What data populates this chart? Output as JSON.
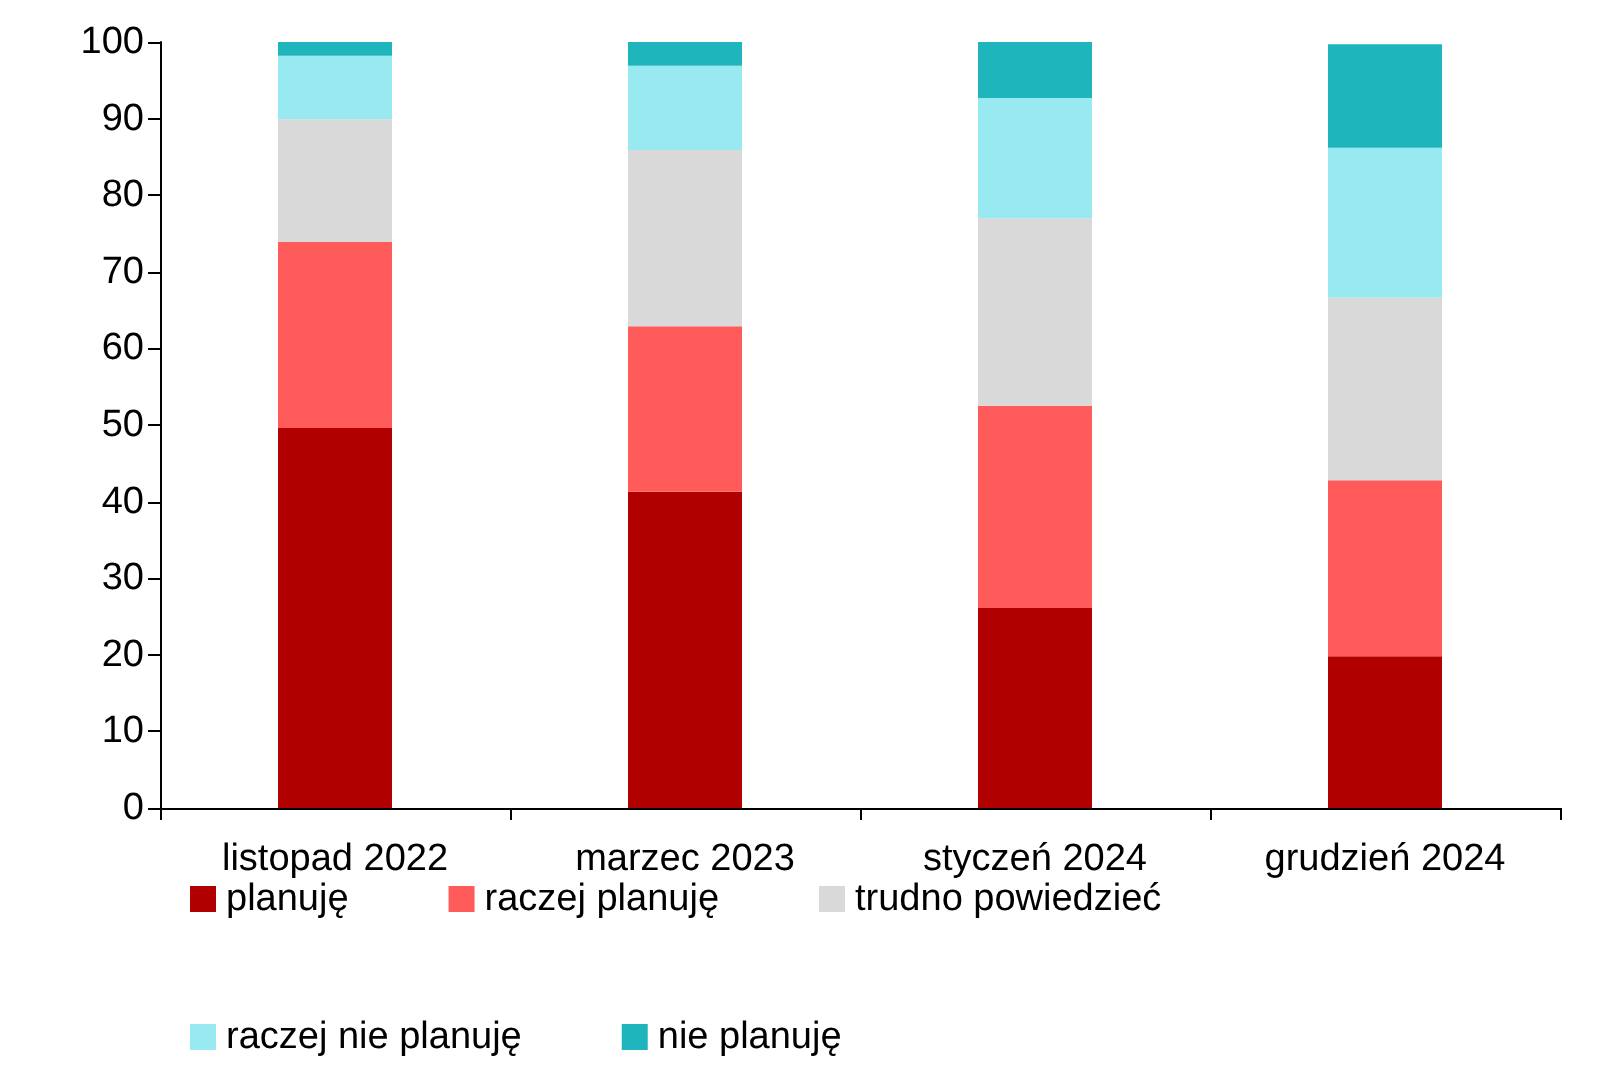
{
  "chart_data": {
    "type": "bar",
    "stacked": true,
    "categories": [
      "listopad 2022",
      "marzec 2023",
      "styczeń 2024",
      "grudzień 2024"
    ],
    "series": [
      {
        "name": "planuję",
        "color": "#b00000",
        "values": [
          49.6,
          41.3,
          26.1,
          19.8
        ]
      },
      {
        "name": "raczej planuję",
        "color": "#ff5b5b",
        "values": [
          24.3,
          21.6,
          26.4,
          23
        ]
      },
      {
        "name": "trudno powiedzieć",
        "color": "#d9d9d9",
        "values": [
          16,
          23,
          24.5,
          23.8
        ]
      },
      {
        "name": "raczej nie planuję",
        "color": "#99eaf0",
        "values": [
          8.3,
          11,
          15.7,
          19.6
        ]
      },
      {
        "name": "nie planuję",
        "color": "#1fb5bd",
        "values": [
          1.8,
          3.1,
          7.3,
          13.5
        ]
      }
    ],
    "ylim": [
      0,
      100
    ],
    "yticks": [
      0,
      10,
      20,
      30,
      40,
      50,
      60,
      70,
      80,
      90,
      100
    ],
    "grid": false,
    "legend": "bottom"
  }
}
